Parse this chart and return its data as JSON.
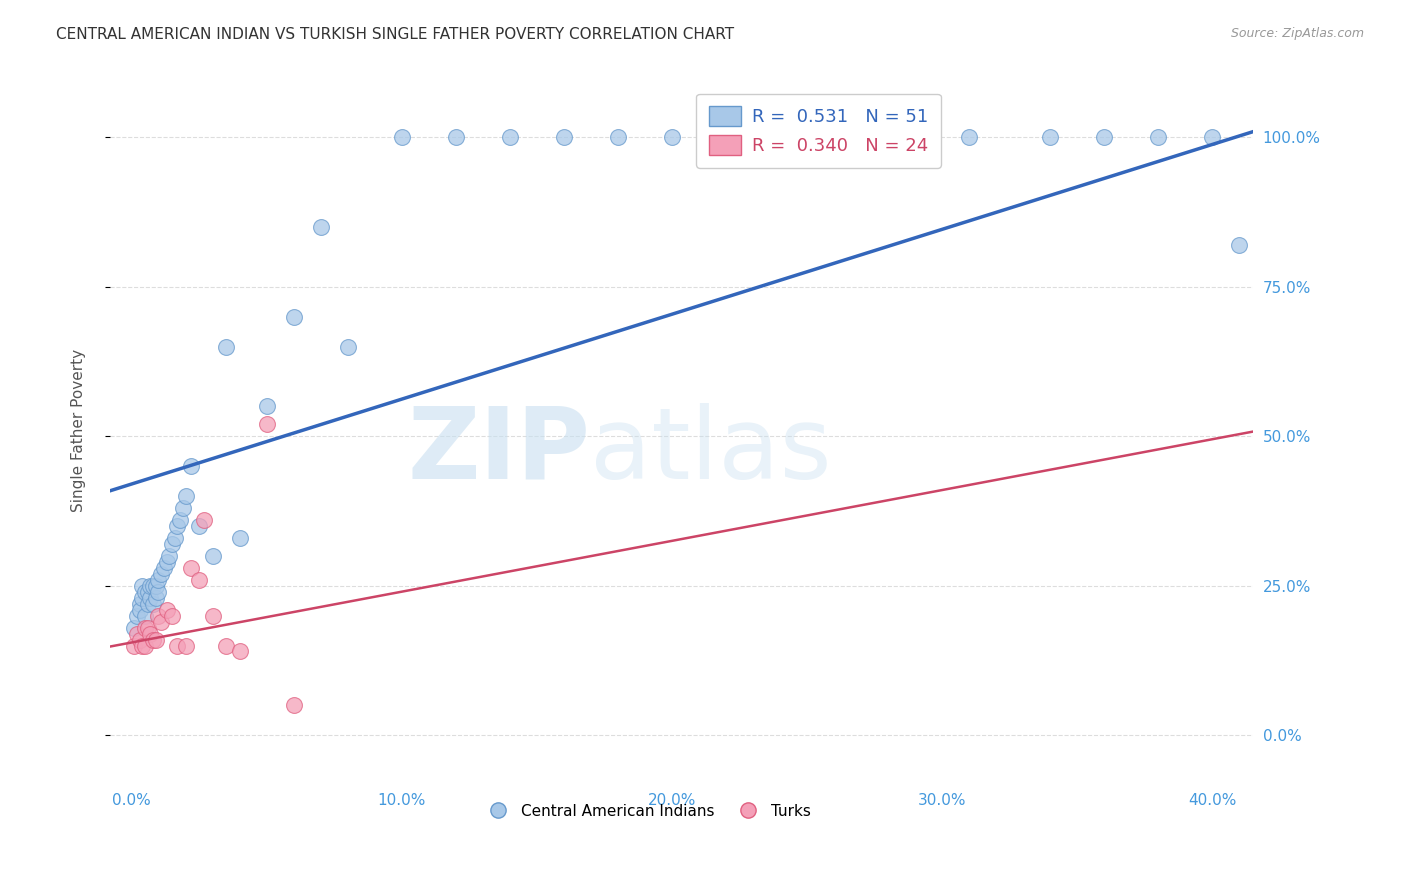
{
  "title": "CENTRAL AMERICAN INDIAN VS TURKISH SINGLE FATHER POVERTY CORRELATION CHART",
  "source": "Source: ZipAtlas.com",
  "xlabel_ticks": [
    "0.0%",
    "",
    "",
    "",
    "10.0%",
    "",
    "",
    "",
    "20.0%",
    "",
    "",
    "",
    "30.0%",
    "",
    "",
    "",
    "40.0%"
  ],
  "xlabel_vals": [
    0.0,
    0.025,
    0.05,
    0.075,
    0.1,
    0.125,
    0.15,
    0.175,
    0.2,
    0.225,
    0.25,
    0.275,
    0.3,
    0.325,
    0.35,
    0.375,
    0.4
  ],
  "xlabel_major_ticks": [
    "0.0%",
    "10.0%",
    "20.0%",
    "30.0%",
    "40.0%"
  ],
  "xlabel_major_vals": [
    0.0,
    0.1,
    0.2,
    0.3,
    0.4
  ],
  "ylabel_label": "Single Father Poverty",
  "ylabel_ticks_right": [
    "100.0%",
    "75.0%",
    "50.0%",
    "25.0%"
  ],
  "ylabel_vals": [
    0.0,
    0.25,
    0.5,
    0.75,
    1.0
  ],
  "xlim": [
    -0.008,
    0.415
  ],
  "ylim": [
    -0.08,
    1.1
  ],
  "legend_blue_r": "0.531",
  "legend_blue_n": "51",
  "legend_pink_r": "0.340",
  "legend_pink_n": "24",
  "blue_scatter_x": [
    0.001,
    0.002,
    0.003,
    0.003,
    0.004,
    0.004,
    0.005,
    0.005,
    0.006,
    0.006,
    0.007,
    0.007,
    0.008,
    0.008,
    0.009,
    0.009,
    0.01,
    0.01,
    0.011,
    0.012,
    0.013,
    0.014,
    0.015,
    0.016,
    0.017,
    0.018,
    0.019,
    0.02,
    0.022,
    0.025,
    0.03,
    0.035,
    0.04,
    0.05,
    0.06,
    0.07,
    0.08,
    0.1,
    0.12,
    0.14,
    0.16,
    0.18,
    0.2,
    0.25,
    0.29,
    0.31,
    0.34,
    0.36,
    0.38,
    0.4,
    0.41
  ],
  "blue_scatter_y": [
    0.18,
    0.2,
    0.22,
    0.21,
    0.23,
    0.25,
    0.2,
    0.24,
    0.22,
    0.24,
    0.23,
    0.25,
    0.22,
    0.25,
    0.23,
    0.25,
    0.24,
    0.26,
    0.27,
    0.28,
    0.29,
    0.3,
    0.32,
    0.33,
    0.35,
    0.36,
    0.38,
    0.4,
    0.45,
    0.35,
    0.3,
    0.65,
    0.33,
    0.55,
    0.7,
    0.85,
    0.65,
    1.0,
    1.0,
    1.0,
    1.0,
    1.0,
    1.0,
    1.0,
    1.0,
    1.0,
    1.0,
    1.0,
    1.0,
    1.0,
    0.82
  ],
  "pink_scatter_x": [
    0.001,
    0.002,
    0.003,
    0.004,
    0.005,
    0.005,
    0.006,
    0.007,
    0.008,
    0.009,
    0.01,
    0.011,
    0.013,
    0.015,
    0.017,
    0.02,
    0.022,
    0.025,
    0.027,
    0.03,
    0.035,
    0.04,
    0.05,
    0.06
  ],
  "pink_scatter_y": [
    0.15,
    0.17,
    0.16,
    0.15,
    0.15,
    0.18,
    0.18,
    0.17,
    0.16,
    0.16,
    0.2,
    0.19,
    0.21,
    0.2,
    0.15,
    0.15,
    0.28,
    0.26,
    0.36,
    0.2,
    0.15,
    0.14,
    0.52,
    0.05
  ],
  "blue_color": "#a8c8e8",
  "pink_color": "#f4a0b8",
  "blue_edge_color": "#6699cc",
  "pink_edge_color": "#e06080",
  "blue_line_color": "#3366bb",
  "pink_line_color": "#cc4466",
  "grid_color": "#dddddd",
  "right_tick_color": "#4499dd",
  "blue_line_intercept": 0.42,
  "blue_line_slope": 1.42,
  "pink_line_intercept": 0.155,
  "pink_line_slope": 0.85
}
